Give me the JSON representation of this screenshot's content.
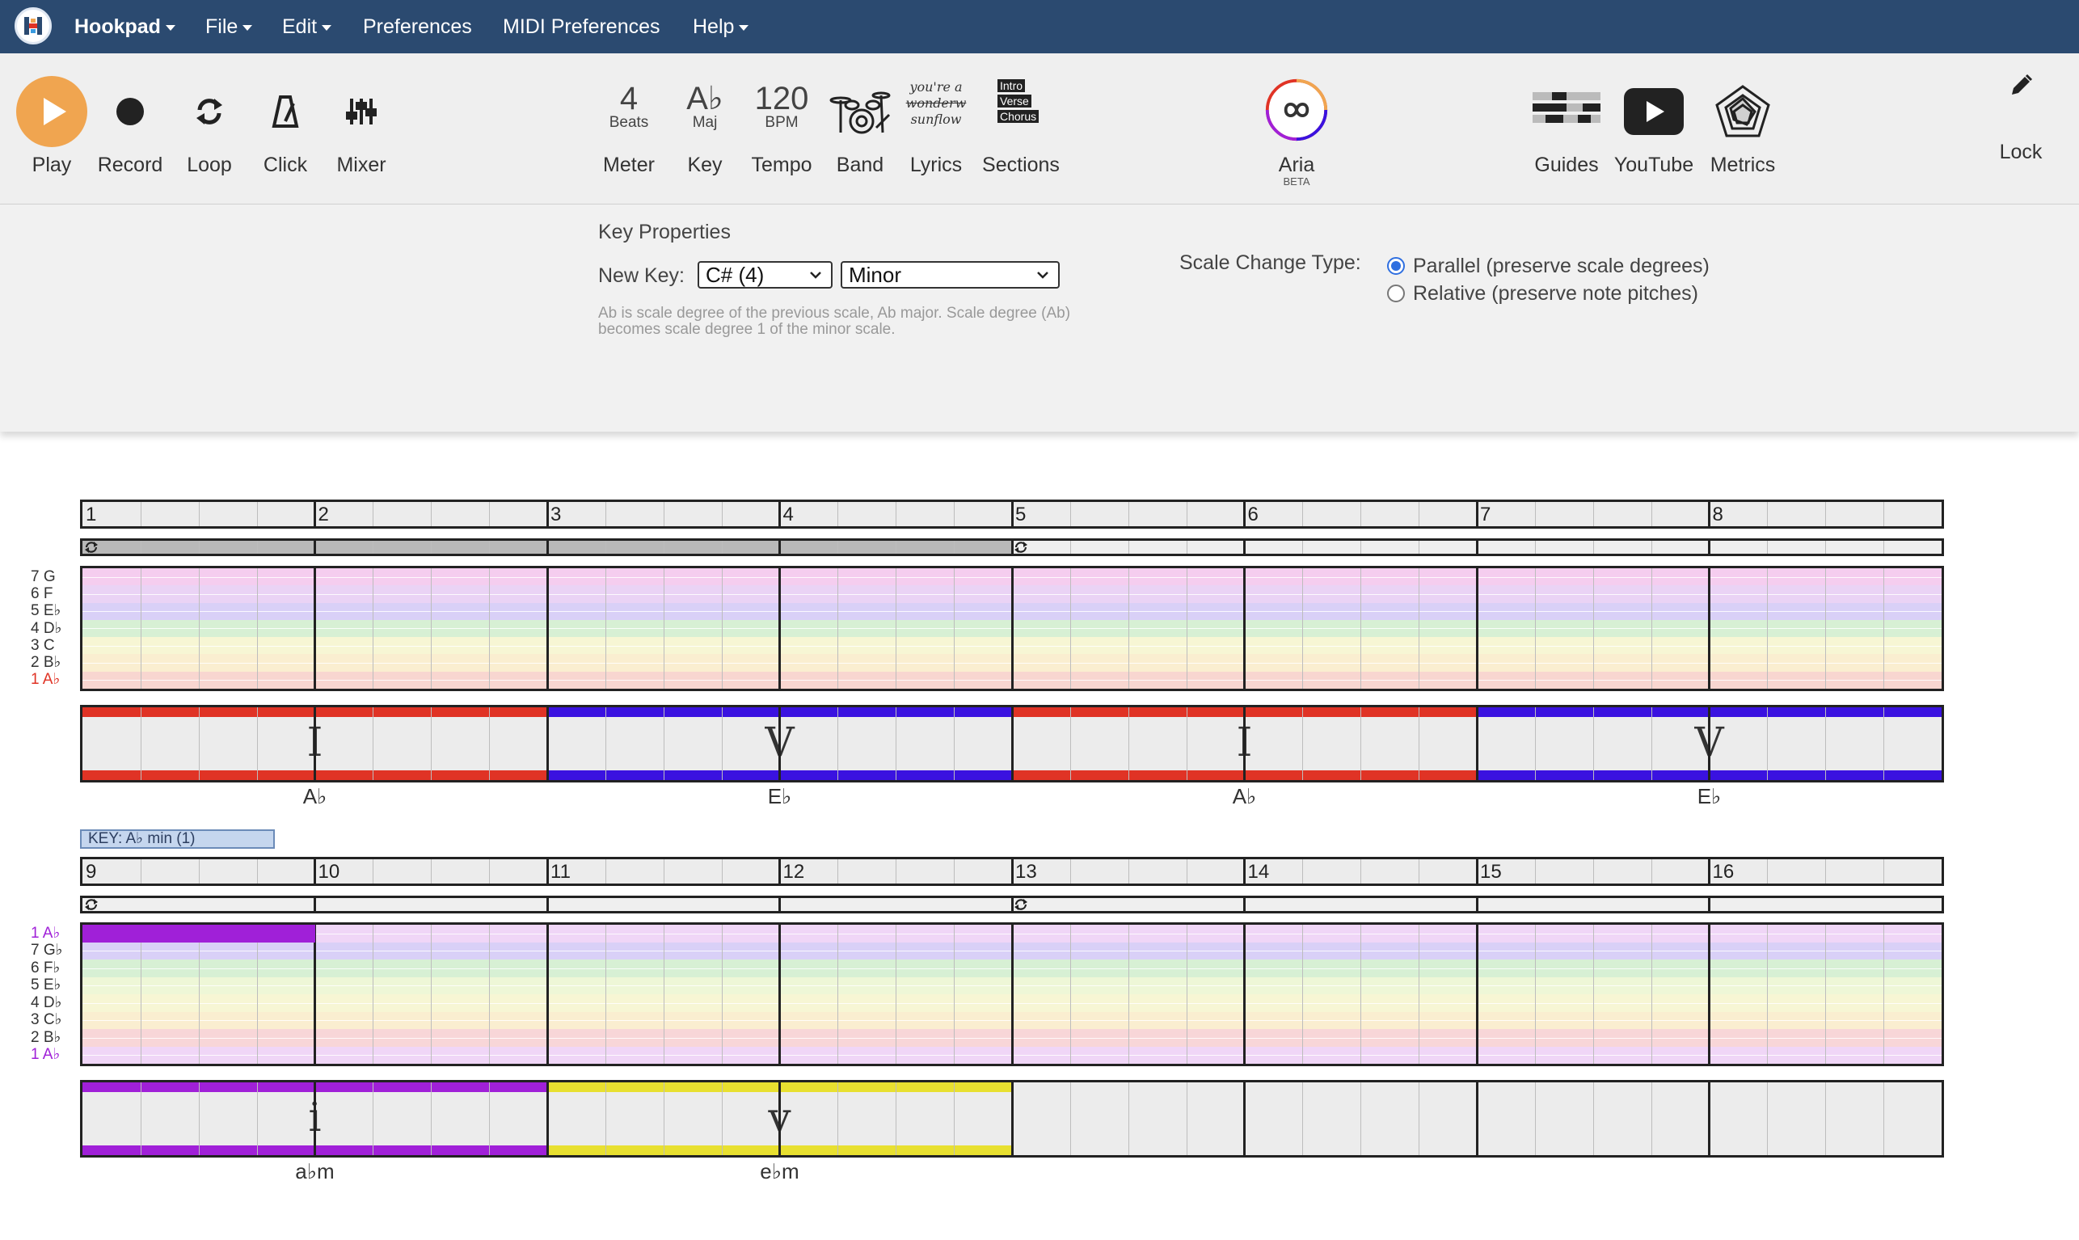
{
  "menubar": {
    "app_name": "Hookpad",
    "items": [
      "File",
      "Edit",
      "Preferences",
      "MIDI Preferences",
      "Help"
    ]
  },
  "toolbar": {
    "play": "Play",
    "record": "Record",
    "loop": "Loop",
    "click": "Click",
    "mixer": "Mixer",
    "meter": {
      "value": "4",
      "sub": "Beats",
      "label": "Meter"
    },
    "key": {
      "value": "A♭",
      "sub": "Maj",
      "label": "Key"
    },
    "tempo": {
      "value": "120",
      "sub": "BPM",
      "label": "Tempo"
    },
    "band": "Band",
    "lyrics": {
      "label": "Lyrics",
      "line1": "you're a",
      "line2": "wonderw",
      "line3": "sunflow"
    },
    "sections": {
      "label": "Sections",
      "items": [
        "Intro",
        "Verse",
        "Chorus"
      ]
    },
    "aria": {
      "label": "Aria",
      "badge": "BETA"
    },
    "guides": "Guides",
    "youtube": "YouTube",
    "metrics": "Metrics",
    "lock": "Lock",
    "accent_color": "#f0a550"
  },
  "key_panel": {
    "title": "Key Properties",
    "new_key_label": "New Key:",
    "key_select": "C# (4)",
    "mode_select": "Minor",
    "note": "Ab is scale degree of the previous scale, Ab major. Scale degree (Ab) becomes scale degree 1 of the minor scale.",
    "scale_change_label": "Scale Change Type:",
    "options": [
      "Parallel (preserve scale degrees)",
      "Relative (preserve note pitches)"
    ],
    "selected_option": 0
  },
  "score": {
    "system1": {
      "bars": [
        "1",
        "2",
        "3",
        "4",
        "5",
        "6",
        "7",
        "8"
      ],
      "note_labels": [
        "7 G",
        "6 F",
        "5 E♭",
        "4 D♭",
        "3 C",
        "2 B♭",
        "1 A♭"
      ],
      "chords": [
        {
          "numeral": "I",
          "name": "A♭",
          "color": "#e03325"
        },
        {
          "numeral": "V",
          "name": "E♭",
          "color": "#3a12e0"
        },
        {
          "numeral": "I",
          "name": "A♭",
          "color": "#e03325"
        },
        {
          "numeral": "V",
          "name": "E♭",
          "color": "#3a12e0"
        }
      ]
    },
    "key_change_tag": "KEY: A♭ min (1)",
    "system2": {
      "bars": [
        "9",
        "10",
        "11",
        "12",
        "13",
        "14",
        "15",
        "16"
      ],
      "note_labels": [
        "1 A♭",
        "7 G♭",
        "6 F♭",
        "5 E♭",
        "4 D♭",
        "3 C♭",
        "2 B♭",
        "1 A♭"
      ],
      "chords": [
        {
          "numeral": "i",
          "name": "a♭m",
          "color": "#a020d8"
        },
        {
          "numeral": "v",
          "name": "e♭m",
          "color": "#e8e030"
        }
      ]
    }
  }
}
